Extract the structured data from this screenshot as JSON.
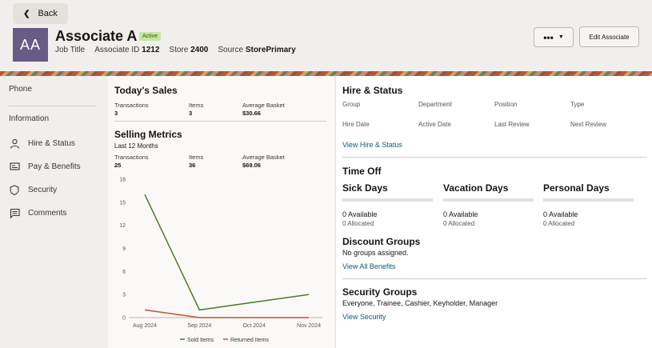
{
  "header": {
    "back_label": "Back",
    "avatar_initials": "AA",
    "name": "Associate A",
    "status_badge": "Active",
    "job_title": "Job Title",
    "associate_id_label": "Associate ID",
    "associate_id": "1212",
    "store_label": "Store",
    "store": "2400",
    "source_label": "Source",
    "source": "StorePrimary",
    "more_label": "•••",
    "edit_label": "Edit Associate"
  },
  "sidebar": {
    "phone": "Phone",
    "information": "Information",
    "items": [
      {
        "label": "Hire & Status",
        "icon": "person-icon"
      },
      {
        "label": "Pay & Benefits",
        "icon": "money-icon"
      },
      {
        "label": "Security",
        "icon": "shield-icon"
      },
      {
        "label": "Comments",
        "icon": "comment-icon"
      }
    ]
  },
  "todays_sales": {
    "title": "Today's Sales",
    "transactions_label": "Transactions",
    "transactions": "3",
    "items_label": "Items",
    "items": "3",
    "avg_label": "Average Basket",
    "avg": "$30.66"
  },
  "selling_metrics": {
    "title": "Selling Metrics",
    "period": "Last 12 Months",
    "transactions_label": "Transactions",
    "transactions": "25",
    "items_label": "Items",
    "items": "36",
    "avg_label": "Average Basket",
    "avg": "$69.06"
  },
  "chart_data": {
    "type": "line",
    "x": [
      "Aug 2024",
      "Sep 2024",
      "Oct 2024",
      "Nov 2024"
    ],
    "ylim": [
      0,
      18
    ],
    "yticks": [
      0,
      3,
      6,
      9,
      12,
      15,
      18
    ],
    "series": [
      {
        "name": "Sold Items",
        "values": [
          16,
          1,
          2,
          3
        ],
        "color": "#4a7a27"
      },
      {
        "name": "Returned Items",
        "values": [
          1,
          0,
          0,
          0
        ],
        "color": "#c2543a"
      }
    ],
    "legend": "bottom",
    "grid": false
  },
  "hire_status": {
    "title": "Hire & Status",
    "labels": [
      "Group",
      "Department",
      "Position",
      "Type",
      "Hire Date",
      "Active Date",
      "Last Review",
      "Next Review"
    ],
    "link": "View Hire & Status"
  },
  "time_off": {
    "title": "Time Off",
    "columns": [
      {
        "label": "Sick Days",
        "available": "0 Available",
        "allocated": "0 Allocated"
      },
      {
        "label": "Vacation Days",
        "available": "0 Available",
        "allocated": "0 Allocated"
      },
      {
        "label": "Personal Days",
        "available": "0 Available",
        "allocated": "0 Allocated"
      }
    ]
  },
  "discount_groups": {
    "title": "Discount Groups",
    "text": "No groups assigned.",
    "link": "View All Benefits"
  },
  "security_groups": {
    "title": "Security Groups",
    "text": "Everyone, Trainee, Cashier, Keyholder, Manager",
    "link": "View Security"
  }
}
